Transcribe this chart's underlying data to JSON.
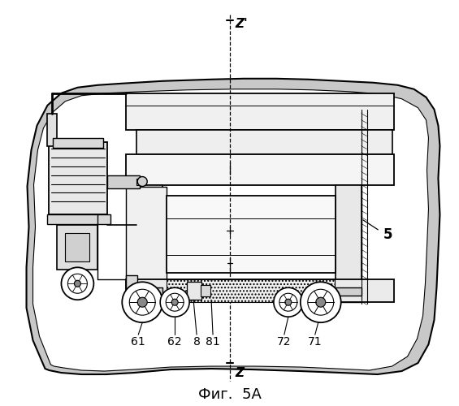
{
  "title": "Фиг.  5А",
  "title_fontsize": 13,
  "background_color": "#ffffff",
  "figure_size": [
    5.65,
    5.0
  ],
  "dpi": 100,
  "z_top_label": "Z'",
  "z_bottom_label": "Z",
  "blob_color": "#c8c8c8",
  "inner_color": "#ffffff",
  "part_fill": "#f2f2f2",
  "hatch_fill": "#e0e0e0"
}
